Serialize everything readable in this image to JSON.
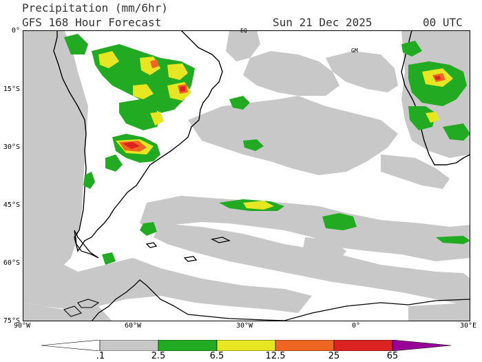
{
  "header": {
    "title_line1": "Precipitation (mm/6hr)",
    "title_line2": "GFS 168 Hour Forecast",
    "date": "Sun 21 Dec 2025",
    "time": "00 UTC"
  },
  "map": {
    "lat_labels": [
      "0°",
      "15°S",
      "30°S",
      "45°S",
      "60°S",
      "75°S"
    ],
    "lon_labels": [
      "90°W",
      "60°W",
      "30°W",
      "0°",
      "30°E"
    ],
    "markers": {
      "equator": "EQ",
      "greenwich": "GM"
    },
    "colors": {
      "land_outline": "#000000",
      "ocean": "#ffffff"
    }
  },
  "legend": {
    "levels": [
      ".1",
      "2.5",
      "6.5",
      "12.5",
      "25",
      "65"
    ],
    "colors": [
      "#ffffff",
      "#c8c8c8",
      "#22aa22",
      "#e6e622",
      "#ee6622",
      "#dd2222",
      "#990099"
    ]
  }
}
